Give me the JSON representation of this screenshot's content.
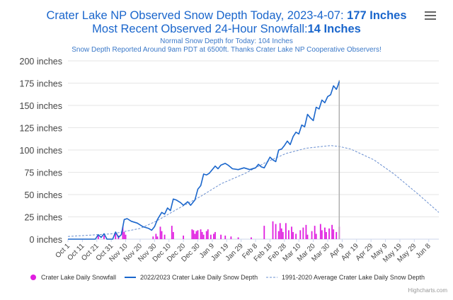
{
  "header": {
    "title_prefix": "Crater Lake NP Observed Snow Depth Today, 2023-4-07: ",
    "title_value": "177 Inches",
    "title2_prefix": "Most Recent Observed 24-Hour Snowfall:",
    "title2_value": "14 Inches",
    "subtitle1": "Normal Snow Depth for Today: 104 Inches",
    "subtitle2": "Snow Depth Reported Around 9am PDT at 6500ft. Thanks Crater Lake NP Cooperative Observers!"
  },
  "menu_icon": "hamburger-menu-icon",
  "credits": "Highcharts.com",
  "colors": {
    "depth": "#1a66cc",
    "snowfall": "#e01ee0",
    "average": "#6a8fd0",
    "title": "#1a66cc"
  },
  "chart_data": {
    "type": "line",
    "y_axis": {
      "min": 0,
      "max": 200,
      "step": 25,
      "unit_suffix": " inches",
      "tick_labels": [
        "0 inches",
        "25 inches",
        "50 inches",
        "75 inches",
        "100 inches",
        "125 inches",
        "150 inches",
        "175 inches",
        "200 inches"
      ]
    },
    "x_axis": {
      "start": "2022-10-01",
      "end": "2023-06-15",
      "tick_labels": [
        "Oct 1",
        "Oct 11",
        "Oct 21",
        "Oct 31",
        "Nov 10",
        "Nov 20",
        "Nov 30",
        "Dec 10",
        "Dec 20",
        "Dec 30",
        "Jan 9",
        "Jan 19",
        "Jan 29",
        "Feb 8",
        "Feb 18",
        "Feb 28",
        "Mar 10",
        "Mar 20",
        "Mar 30",
        "Apr 9",
        "Apr 19",
        "Apr 29",
        "May 9",
        "May 19",
        "May 29",
        "Jun 8"
      ]
    },
    "plot_line": "2023-04-07",
    "grid": true,
    "legend_position": "bottom",
    "series": [
      {
        "name": "2022/2023 Crater Lake Daily Snow Depth",
        "type": "line",
        "points": [
          [
            "2022-10-01",
            0
          ],
          [
            "2022-10-20",
            0
          ],
          [
            "2022-10-22",
            5
          ],
          [
            "2022-10-24",
            2
          ],
          [
            "2022-10-26",
            6
          ],
          [
            "2022-10-28",
            0
          ],
          [
            "2022-11-01",
            0
          ],
          [
            "2022-11-03",
            8
          ],
          [
            "2022-11-05",
            2
          ],
          [
            "2022-11-07",
            5
          ],
          [
            "2022-11-09",
            22
          ],
          [
            "2022-11-11",
            23
          ],
          [
            "2022-11-14",
            20
          ],
          [
            "2022-11-18",
            18
          ],
          [
            "2022-11-22",
            14
          ],
          [
            "2022-11-26",
            12
          ],
          [
            "2022-11-28",
            10
          ],
          [
            "2022-11-30",
            14
          ],
          [
            "2022-12-02",
            22
          ],
          [
            "2022-12-05",
            30
          ],
          [
            "2022-12-07",
            28
          ],
          [
            "2022-12-09",
            35
          ],
          [
            "2022-12-11",
            32
          ],
          [
            "2022-12-13",
            45
          ],
          [
            "2022-12-15",
            44
          ],
          [
            "2022-12-18",
            41
          ],
          [
            "2022-12-20",
            38
          ],
          [
            "2022-12-23",
            42
          ],
          [
            "2022-12-25",
            38
          ],
          [
            "2022-12-28",
            44
          ],
          [
            "2022-12-30",
            56
          ],
          [
            "2023-01-01",
            60
          ],
          [
            "2023-01-03",
            73
          ],
          [
            "2023-01-05",
            72
          ],
          [
            "2023-01-07",
            74
          ],
          [
            "2023-01-09",
            78
          ],
          [
            "2023-01-11",
            82
          ],
          [
            "2023-01-13",
            79
          ],
          [
            "2023-01-15",
            83
          ],
          [
            "2023-01-18",
            85
          ],
          [
            "2023-01-20",
            83
          ],
          [
            "2023-01-23",
            79
          ],
          [
            "2023-01-27",
            78
          ],
          [
            "2023-01-31",
            80
          ],
          [
            "2023-02-04",
            78
          ],
          [
            "2023-02-08",
            80
          ],
          [
            "2023-02-10",
            84
          ],
          [
            "2023-02-12",
            81
          ],
          [
            "2023-02-14",
            80
          ],
          [
            "2023-02-16",
            86
          ],
          [
            "2023-02-18",
            92
          ],
          [
            "2023-02-20",
            89
          ],
          [
            "2023-02-22",
            87
          ],
          [
            "2023-02-24",
            100
          ],
          [
            "2023-02-26",
            101
          ],
          [
            "2023-02-28",
            105
          ],
          [
            "2023-03-02",
            110
          ],
          [
            "2023-03-04",
            106
          ],
          [
            "2023-03-06",
            115
          ],
          [
            "2023-03-08",
            120
          ],
          [
            "2023-03-10",
            118
          ],
          [
            "2023-03-12",
            128
          ],
          [
            "2023-03-14",
            126
          ],
          [
            "2023-03-16",
            140
          ],
          [
            "2023-03-18",
            136
          ],
          [
            "2023-03-20",
            133
          ],
          [
            "2023-03-22",
            148
          ],
          [
            "2023-03-24",
            146
          ],
          [
            "2023-03-26",
            156
          ],
          [
            "2023-03-28",
            153
          ],
          [
            "2023-03-30",
            160
          ],
          [
            "2023-04-01",
            162
          ],
          [
            "2023-04-03",
            172
          ],
          [
            "2023-04-05",
            168
          ],
          [
            "2023-04-06",
            172
          ],
          [
            "2023-04-07",
            177
          ]
        ]
      },
      {
        "name": "1991-2020 Average Crater Lake Daily Snow Depth",
        "type": "dashed",
        "points": [
          [
            "2022-10-01",
            3
          ],
          [
            "2022-11-01",
            6
          ],
          [
            "2022-11-20",
            12
          ],
          [
            "2022-12-01",
            20
          ],
          [
            "2022-12-15",
            33
          ],
          [
            "2023-01-01",
            48
          ],
          [
            "2023-01-15",
            62
          ],
          [
            "2023-02-01",
            74
          ],
          [
            "2023-02-15",
            86
          ],
          [
            "2023-03-01",
            96
          ],
          [
            "2023-03-15",
            102
          ],
          [
            "2023-04-01",
            105
          ],
          [
            "2023-04-07",
            104
          ],
          [
            "2023-04-15",
            101
          ],
          [
            "2023-05-01",
            89
          ],
          [
            "2023-05-15",
            73
          ],
          [
            "2023-06-01",
            50
          ],
          [
            "2023-06-15",
            30
          ]
        ]
      },
      {
        "name": "Crater Lake Daily Snowfall",
        "type": "bar",
        "points": [
          [
            "2022-10-22",
            5
          ],
          [
            "2022-10-26",
            4
          ],
          [
            "2022-11-03",
            6
          ],
          [
            "2022-11-05",
            4
          ],
          [
            "2022-11-08",
            14
          ],
          [
            "2022-11-09",
            8
          ],
          [
            "2022-11-10",
            5
          ],
          [
            "2022-11-29",
            3
          ],
          [
            "2022-12-01",
            6
          ],
          [
            "2022-12-02",
            3
          ],
          [
            "2022-12-04",
            14
          ],
          [
            "2022-12-05",
            9
          ],
          [
            "2022-12-07",
            5
          ],
          [
            "2022-12-12",
            15
          ],
          [
            "2022-12-13",
            8
          ],
          [
            "2022-12-20",
            4
          ],
          [
            "2022-12-26",
            11
          ],
          [
            "2022-12-27",
            10
          ],
          [
            "2022-12-28",
            6
          ],
          [
            "2022-12-29",
            9
          ],
          [
            "2022-12-30",
            10
          ],
          [
            "2023-01-01",
            11
          ],
          [
            "2023-01-02",
            8
          ],
          [
            "2023-01-03",
            5
          ],
          [
            "2023-01-05",
            9
          ],
          [
            "2023-01-06",
            11
          ],
          [
            "2023-01-08",
            5
          ],
          [
            "2023-01-10",
            6
          ],
          [
            "2023-01-11",
            8
          ],
          [
            "2023-01-15",
            5
          ],
          [
            "2023-01-18",
            4
          ],
          [
            "2023-01-22",
            3
          ],
          [
            "2023-01-27",
            2
          ],
          [
            "2023-02-05",
            2
          ],
          [
            "2023-02-14",
            15
          ],
          [
            "2023-02-20",
            20
          ],
          [
            "2023-02-22",
            17
          ],
          [
            "2023-02-24",
            9
          ],
          [
            "2023-02-25",
            18
          ],
          [
            "2023-02-26",
            12
          ],
          [
            "2023-02-27",
            8
          ],
          [
            "2023-03-01",
            18
          ],
          [
            "2023-03-03",
            10
          ],
          [
            "2023-03-05",
            14
          ],
          [
            "2023-03-06",
            8
          ],
          [
            "2023-03-08",
            6
          ],
          [
            "2023-03-11",
            10
          ],
          [
            "2023-03-13",
            13
          ],
          [
            "2023-03-15",
            16
          ],
          [
            "2023-03-16",
            5
          ],
          [
            "2023-03-19",
            9
          ],
          [
            "2023-03-21",
            15
          ],
          [
            "2023-03-22",
            6
          ],
          [
            "2023-03-25",
            17
          ],
          [
            "2023-03-26",
            10
          ],
          [
            "2023-03-28",
            13
          ],
          [
            "2023-03-29",
            8
          ],
          [
            "2023-03-31",
            12
          ],
          [
            "2023-04-02",
            16
          ],
          [
            "2023-04-03",
            11
          ],
          [
            "2023-04-05",
            8
          ],
          [
            "2023-04-07",
            14
          ]
        ]
      }
    ]
  }
}
